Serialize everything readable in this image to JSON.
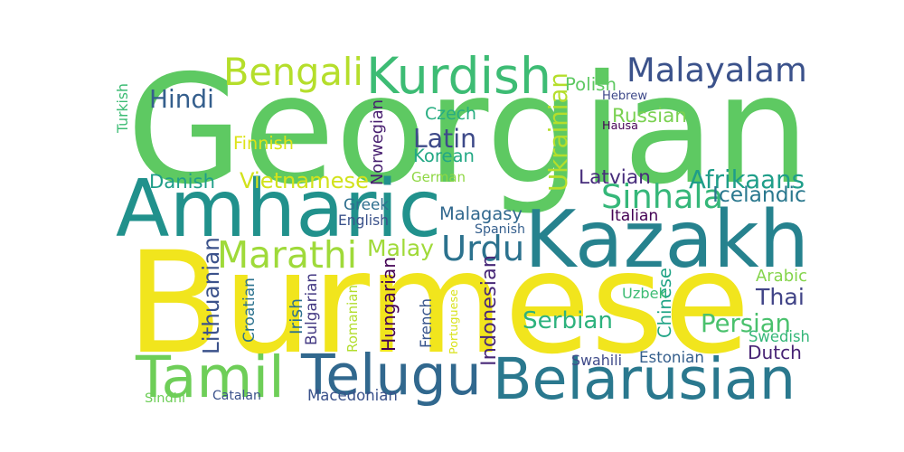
{
  "words": [
    {
      "text": "Burmese",
      "color": "#f1e51d"
    },
    {
      "text": "Georgian",
      "color": "#5ec962"
    },
    {
      "text": "Kazakh",
      "color": "#26828e"
    },
    {
      "text": "Amharic",
      "color": "#21918c"
    },
    {
      "text": "Belarusian",
      "color": "#2a788e"
    },
    {
      "text": "Telugu",
      "color": "#31688e"
    },
    {
      "text": "Tamil",
      "color": "#6ece58"
    },
    {
      "text": "Kurdish",
      "color": "#3dbc74"
    },
    {
      "text": "Malayalam",
      "color": "#3b528b"
    },
    {
      "text": "Bengali",
      "color": "#b5de2b"
    },
    {
      "text": "Sinhala",
      "color": "#35b779"
    },
    {
      "text": "Marathi",
      "color": "#9fda3a"
    },
    {
      "text": "Urdu",
      "color": "#2c728e"
    },
    {
      "text": "Serbian",
      "color": "#2db27d"
    },
    {
      "text": "Persian",
      "color": "#4ac16d"
    },
    {
      "text": "Afrikaans",
      "color": "#1f9e89"
    },
    {
      "text": "Hindi",
      "color": "#355f8d"
    },
    {
      "text": "Russian",
      "color": "#7ad151"
    },
    {
      "text": "Latin",
      "color": "#3e4a89"
    },
    {
      "text": "Korean",
      "color": "#22a884"
    },
    {
      "text": "Czech",
      "color": "#27ad81"
    },
    {
      "text": "Thai",
      "color": "#414487"
    },
    {
      "text": "Vietnamese",
      "color": "#d2e21b"
    },
    {
      "text": "Ukrainian",
      "color": "#b5de2b"
    },
    {
      "text": "Hungarian",
      "color": "#440154"
    },
    {
      "text": "Indonesian",
      "color": "#482878"
    },
    {
      "text": "Lithuanian",
      "color": "#3b528b"
    },
    {
      "text": "Malagasy",
      "color": "#31688e"
    },
    {
      "text": "Malay",
      "color": "#a0da39"
    },
    {
      "text": "Latvian",
      "color": "#472d7b"
    },
    {
      "text": "Icelandic",
      "color": "#2a788e"
    },
    {
      "text": "Dutch",
      "color": "#482475"
    },
    {
      "text": "Danish",
      "color": "#1f9e89"
    },
    {
      "text": "Norwegian",
      "color": "#481f70"
    },
    {
      "text": "Chinese",
      "color": "#20a486"
    },
    {
      "text": "Macedonian",
      "color": "#3b528b"
    },
    {
      "text": "Estonian",
      "color": "#355f8d"
    },
    {
      "text": "Swedish",
      "color": "#35b779"
    },
    {
      "text": "Croatian",
      "color": "#2c728e"
    },
    {
      "text": "Bulgarian",
      "color": "#443a83"
    },
    {
      "text": "Polish",
      "color": "#5ec962"
    },
    {
      "text": "German",
      "color": "#8fd744"
    },
    {
      "text": "Finnish",
      "color": "#dde318"
    },
    {
      "text": "Greek",
      "color": "#2e6f8e"
    },
    {
      "text": "Arabic",
      "color": "#84d44b"
    },
    {
      "text": "Catalan",
      "color": "#3b528b"
    },
    {
      "text": "Romanian",
      "color": "#b2dd2d"
    },
    {
      "text": "Portuguese",
      "color": "#d8e219"
    },
    {
      "text": "French",
      "color": "#39568c"
    },
    {
      "text": "Irish",
      "color": "#2d708e"
    },
    {
      "text": "Uzbek",
      "color": "#3dbc74"
    },
    {
      "text": "Swahili",
      "color": "#3e4a89"
    },
    {
      "text": "Spanish",
      "color": "#355f8d"
    },
    {
      "text": "Italian",
      "color": "#440154"
    },
    {
      "text": "English",
      "color": "#3b528b"
    },
    {
      "text": "Hebrew",
      "color": "#3e4989"
    },
    {
      "text": "Hausa",
      "color": "#440154"
    },
    {
      "text": "Turkish",
      "color": "#3dbc74"
    },
    {
      "text": "Sindhi",
      "color": "#6ece58"
    }
  ]
}
